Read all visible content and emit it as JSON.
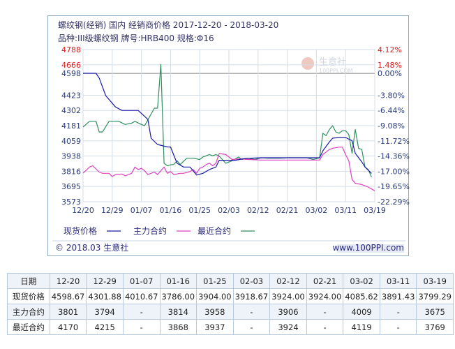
{
  "header": {
    "title_line": "螺纹钢(经销) 国内 经销商价格 2017-12-20 - 2018-03-20",
    "spec_line": "品种:III级螺纹钢 牌号:HRB400 规格:Φ16"
  },
  "watermark": {
    "name": "生意社",
    "url": "100PPI.COM"
  },
  "footer": {
    "left": "© 2018.03 生意社",
    "right": "www.100PPI.com"
  },
  "legend": [
    {
      "label": "现货价格",
      "color": "#1a1aa6"
    },
    {
      "label": "主力合约",
      "color": "#e040c0"
    },
    {
      "label": "最近合约",
      "color": "#2f8f5f"
    }
  ],
  "chart_data": {
    "type": "line",
    "x_ticks": [
      "12/20",
      "12/29",
      "01/07",
      "01/16",
      "01/25",
      "02/03",
      "02/12",
      "02/21",
      "03/02",
      "03/11",
      "03/19"
    ],
    "x_range": [
      0,
      90
    ],
    "y_left_ticks": [
      4788,
      4666,
      4598,
      4423,
      4302,
      4181,
      4059,
      3938,
      3816,
      3695,
      3573
    ],
    "y_left_range": [
      3573,
      4788
    ],
    "y_right_ticks": [
      "4.12%",
      "1.48%",
      "0.00%",
      "-3.80%",
      "-6.44%",
      "-9.08%",
      "-11.72%",
      "-14.36%",
      "-17.00%",
      "-19.65%",
      "-22.29%"
    ],
    "baseline": 4598,
    "grid": true,
    "series": [
      {
        "name": "现货价格",
        "color": "#1a1aa6",
        "x": [
          0,
          4,
          5,
          7,
          10,
          12,
          14,
          17,
          20,
          21,
          23,
          26,
          27,
          29,
          31,
          33,
          35,
          37,
          39,
          41,
          42,
          43,
          45,
          47,
          50,
          55,
          60,
          63,
          65,
          68,
          70,
          72,
          73,
          74,
          76,
          77,
          79,
          81,
          83,
          84,
          86,
          87,
          89
        ],
        "y": [
          4598.67,
          4598.67,
          4560,
          4420,
          4330,
          4301.88,
          4301.88,
          4301.88,
          4230,
          4080,
          4030,
          4010.67,
          4010,
          3880,
          3850,
          3850,
          3786,
          3800,
          3830,
          3850,
          3904,
          3904,
          3904,
          3904,
          3918.67,
          3924,
          3924,
          3924,
          3924,
          3924,
          3924,
          3924,
          3924,
          3980,
          4050,
          4080,
          4085.62,
          4085.62,
          4060,
          3960,
          3891.43,
          3850,
          3799.29
        ]
      },
      {
        "name": "主力合约",
        "color": "#e040c0",
        "x": [
          0,
          2,
          3,
          5,
          6,
          8,
          9,
          10,
          12,
          13,
          15,
          16,
          17,
          18,
          19,
          20,
          22,
          23,
          25,
          26,
          27,
          28,
          30,
          31,
          33,
          34,
          35,
          36,
          37,
          38,
          39,
          40,
          41,
          42,
          44,
          46,
          48,
          51,
          55,
          60,
          63,
          65,
          68,
          70,
          72,
          73,
          74,
          76,
          77,
          79,
          80,
          81,
          82,
          83,
          84,
          86,
          87,
          88,
          89,
          90
        ],
        "y": [
          3801,
          3850,
          3860,
          3810,
          3800,
          3800,
          3775,
          3790,
          3794,
          3780,
          3800,
          3850,
          3830,
          3840,
          3820,
          3790,
          3810,
          3790,
          3850,
          3800,
          3814,
          3790,
          3800,
          3800,
          3814,
          3830,
          3800,
          3840,
          3850,
          3870,
          3880,
          3860,
          3880,
          3958,
          3950,
          3910,
          3915,
          3910,
          3906,
          3906,
          3906,
          3906,
          3906,
          3906,
          3906,
          3906,
          3950,
          3990,
          4000,
          4009,
          4009,
          3950,
          3900,
          3750,
          3720,
          3710,
          3700,
          3690,
          3675,
          3660
        ]
      },
      {
        "name": "最近合约",
        "color": "#2f8f5f",
        "x": [
          0,
          2,
          3,
          4,
          5,
          6,
          8,
          9,
          10,
          11,
          13,
          15,
          16,
          18,
          19,
          22,
          23,
          24,
          25,
          26,
          27,
          28,
          29,
          30,
          32,
          34,
          36,
          37,
          39,
          40,
          41,
          42,
          44,
          46,
          48,
          49,
          51,
          53,
          55,
          57,
          59,
          61,
          63,
          65,
          67,
          69,
          71,
          73,
          74,
          75,
          76,
          77,
          78,
          79,
          80,
          81,
          82,
          83,
          84,
          85,
          86,
          87,
          88,
          89
        ],
        "y": [
          4170,
          4215,
          4215,
          4215,
          4130,
          4130,
          4215,
          4215,
          4215,
          4215,
          4190,
          4200,
          4215,
          4190,
          4180,
          4320,
          4320,
          4670,
          3880,
          3860,
          3868,
          3870,
          3900,
          3870,
          3920,
          3920,
          3910,
          3930,
          3950,
          3940,
          3950,
          3937,
          3880,
          3900,
          3930,
          3910,
          3920,
          3910,
          3924,
          3920,
          3920,
          3920,
          3924,
          3924,
          3924,
          3924,
          3910,
          3924,
          4119,
          4100,
          4150,
          4180,
          4130,
          4119,
          4140,
          4140,
          4110,
          3960,
          4150,
          4000,
          3990,
          3850,
          3830,
          3769
        ]
      }
    ]
  },
  "table": {
    "header_label": "日期",
    "dates": [
      "12-20",
      "12-29",
      "01-07",
      "01-16",
      "01-25",
      "02-03",
      "02-12",
      "02-21",
      "03-02",
      "03-11",
      "03-19"
    ],
    "rows": [
      {
        "label": "现货价格",
        "values": [
          "4598.67",
          "4301.88",
          "4010.67",
          "3786.00",
          "3904.00",
          "3918.67",
          "3924.00",
          "3924.00",
          "4085.62",
          "3891.43",
          "3799.29"
        ]
      },
      {
        "label": "主力合约",
        "values": [
          "3801",
          "3794",
          "-",
          "3814",
          "3958",
          "-",
          "3906",
          "-",
          "4009",
          "-",
          "3675"
        ]
      },
      {
        "label": "最近合约",
        "values": [
          "4170",
          "4215",
          "-",
          "3868",
          "3937",
          "-",
          "3924",
          "-",
          "4119",
          "-",
          "3769"
        ]
      }
    ]
  }
}
